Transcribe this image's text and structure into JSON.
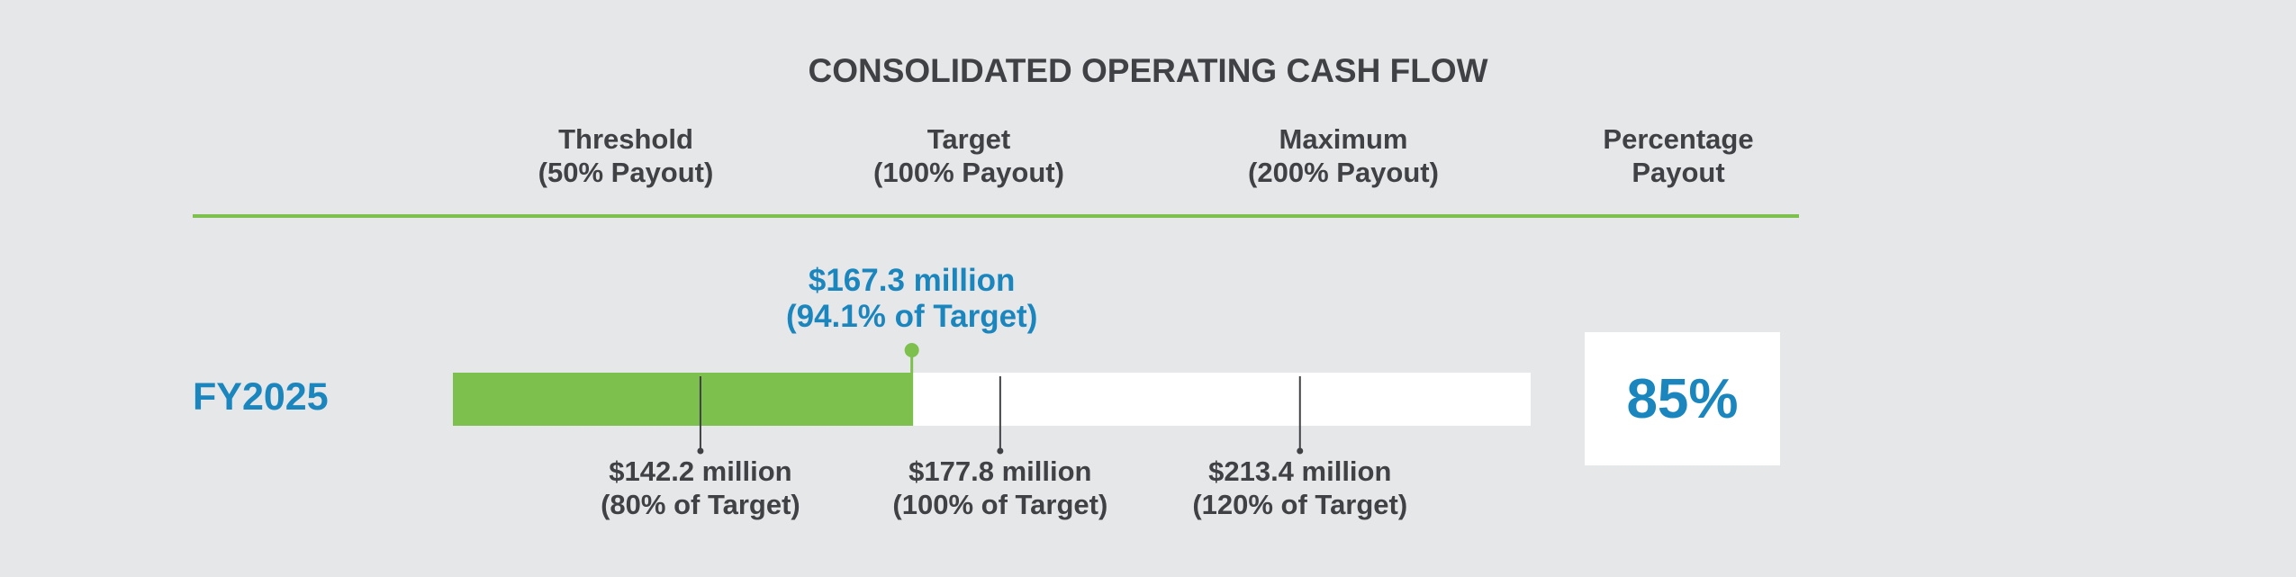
{
  "chart_data": {
    "type": "bar",
    "title": "CONSOLIDATED OPERATING CASH FLOW",
    "columns": [
      {
        "line1": "Threshold",
        "line2": "(50% Payout)"
      },
      {
        "line1": "Target",
        "line2": "(100% Payout)"
      },
      {
        "line1": "Maximum",
        "line2": "(200% Payout)"
      },
      {
        "line1": "Percentage",
        "line2": "Payout"
      }
    ],
    "row_label": "FY2025",
    "unit": "$ million",
    "xlim": [
      112.8,
      240.8
    ],
    "actual": {
      "value": 167.3,
      "label_line1": "$167.3 million",
      "label_line2": "(94.1% of Target)"
    },
    "ticks": [
      {
        "value": 142.2,
        "label_line1": "$142.2 million",
        "label_line2": "(80% of Target)"
      },
      {
        "value": 177.8,
        "label_line1": "$177.8 million",
        "label_line2": "(100% of Target)"
      },
      {
        "value": 213.4,
        "label_line1": "$213.4 million",
        "label_line2": "(120% of Target)"
      }
    ],
    "payout_percentage": "85%",
    "colors": {
      "bar_fill": "#7dc04e",
      "track": "#ffffff",
      "accent": "#1b86bd",
      "text": "#3f4144",
      "tick_line": "#3f4144"
    }
  }
}
